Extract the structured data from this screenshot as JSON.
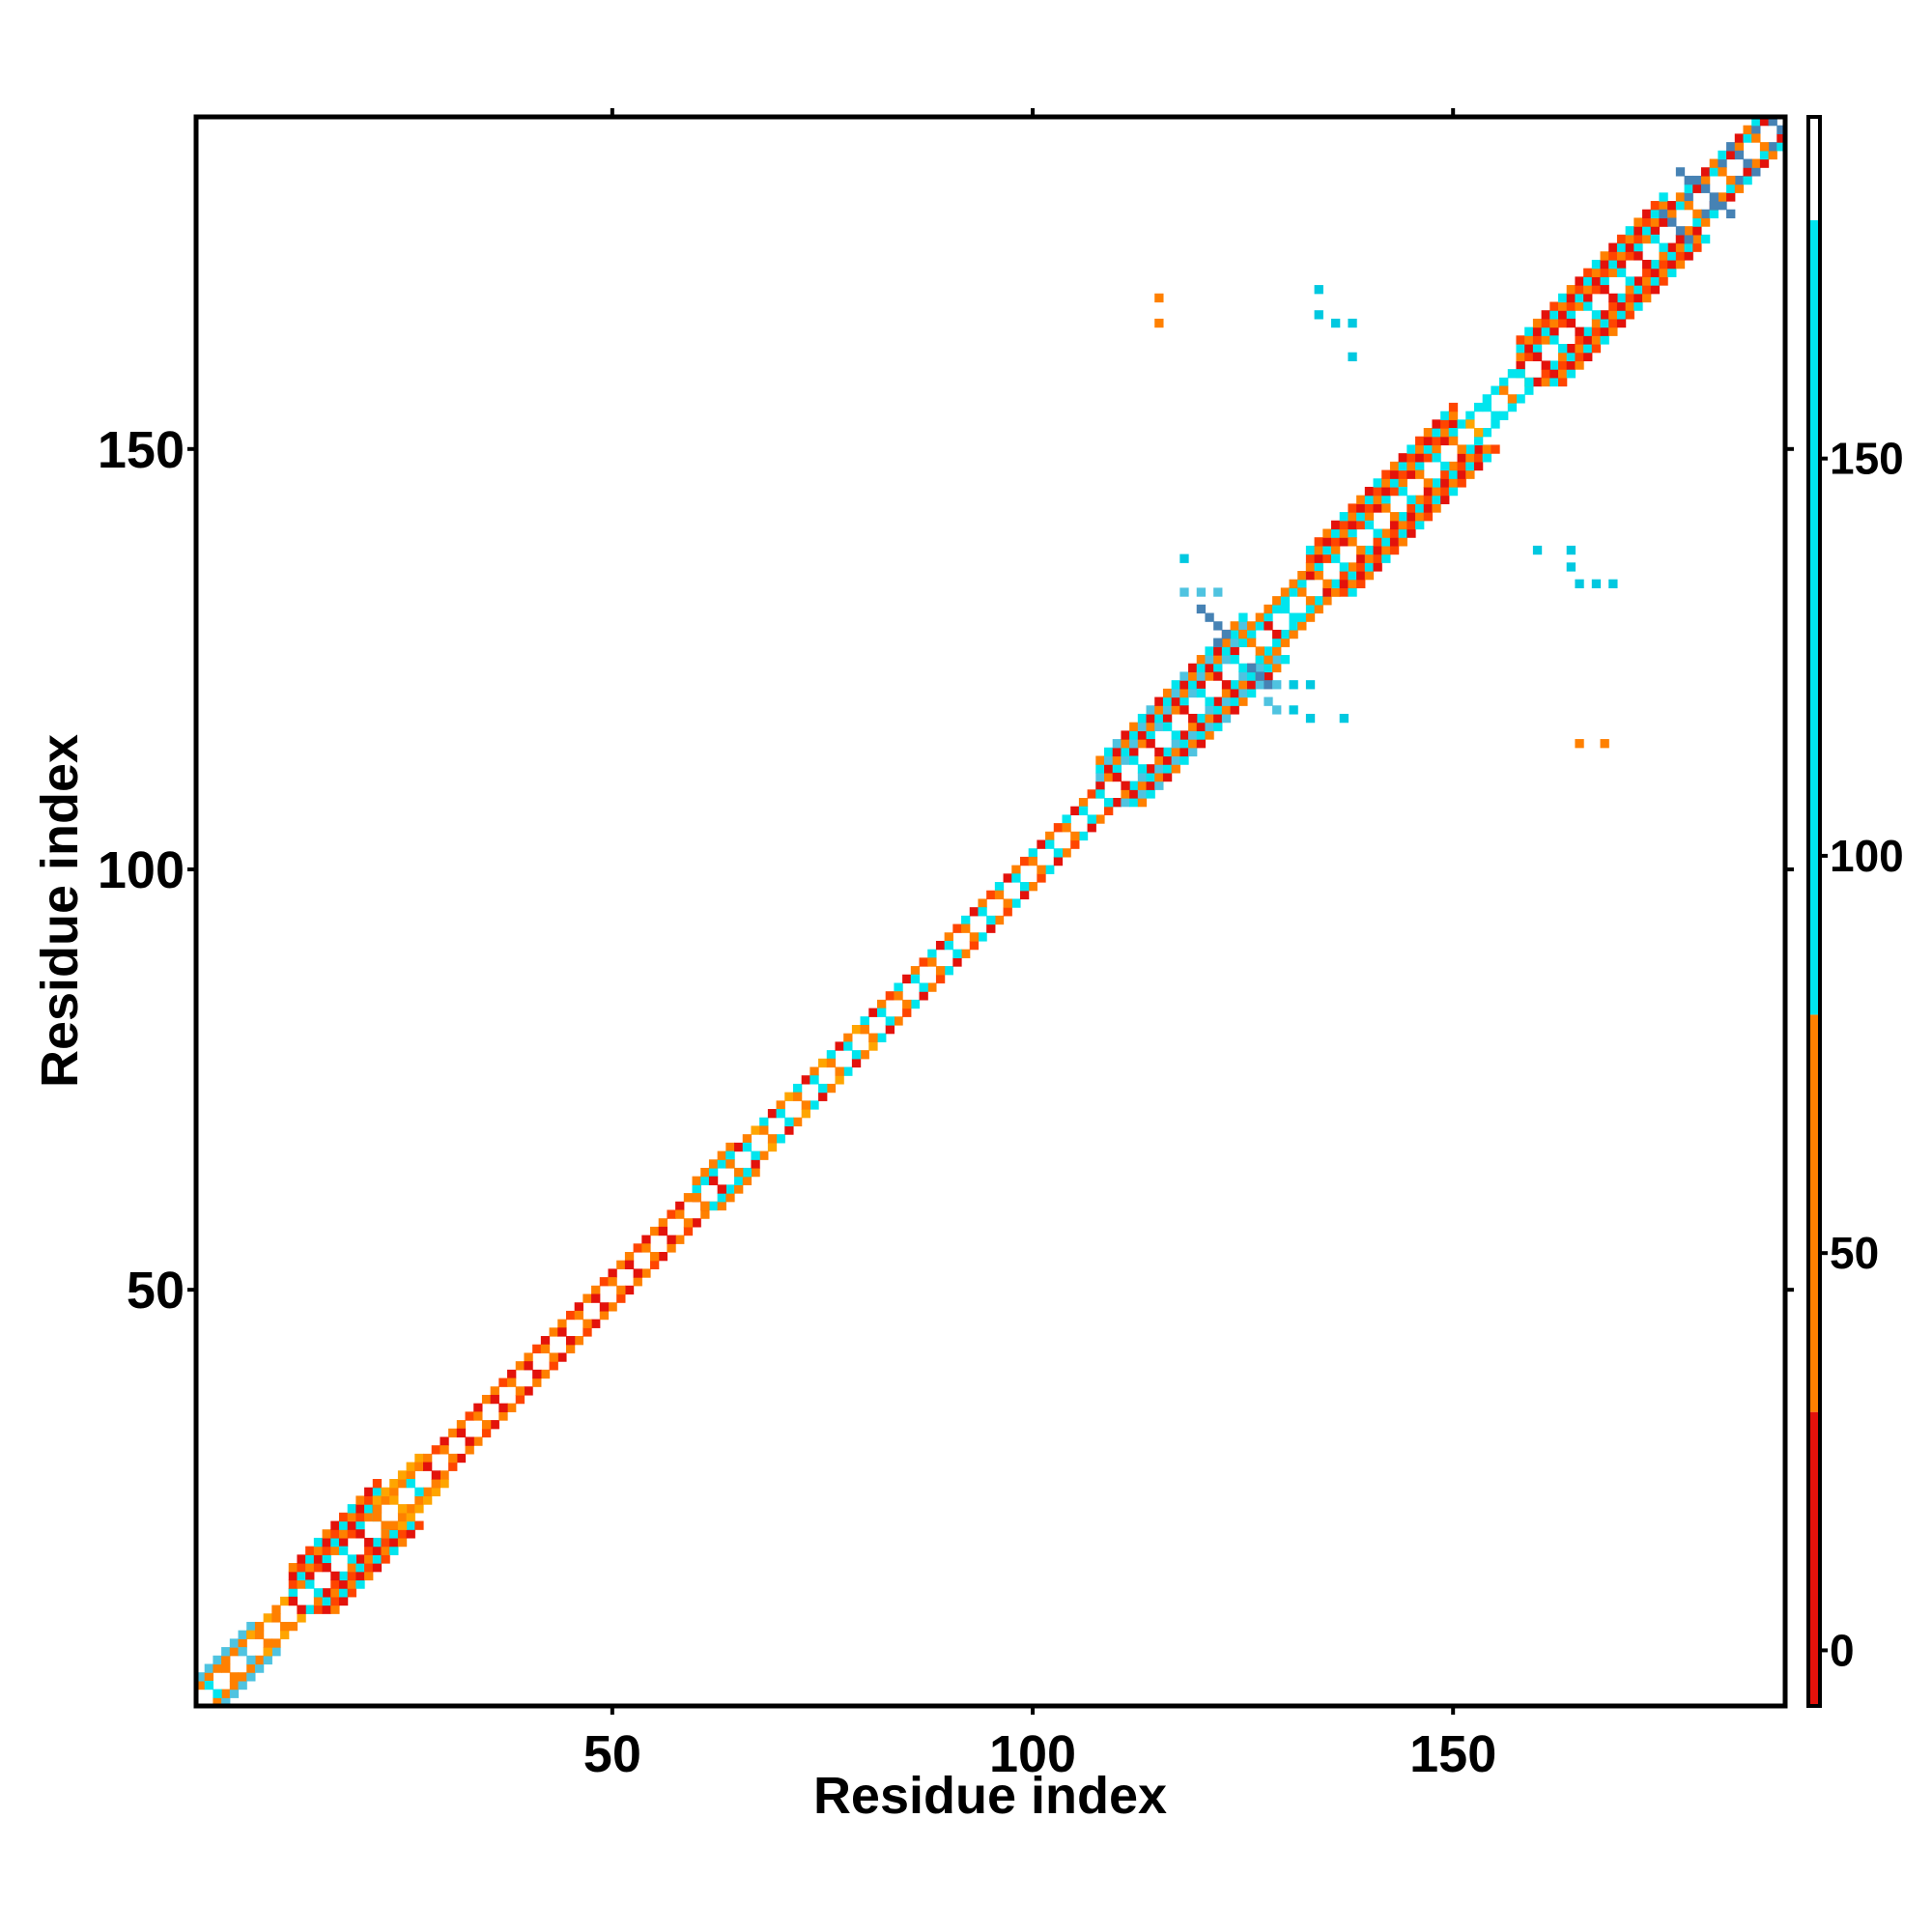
{
  "chart_data": {
    "type": "heatmap",
    "title": "",
    "xlabel": "Residue index",
    "ylabel": "Residue index",
    "xlim": [
      1,
      189
    ],
    "ylim": [
      1,
      189
    ],
    "x_ticks": [
      50,
      100,
      150
    ],
    "y_ticks": [
      50,
      100,
      150
    ],
    "grid": false,
    "matrix": "symmetric contact map, diagonal band from (1,1) to (189,189)",
    "colorbar": {
      "ticks": [
        0,
        50,
        100,
        150
      ],
      "range": [
        -7,
        193
      ],
      "bands": [
        {
          "from": -7,
          "to": 30,
          "color": "#e3120b"
        },
        {
          "from": 30,
          "to": 80,
          "color": "#ff8000"
        },
        {
          "from": 80,
          "to": 180,
          "color": "#00e5ee"
        },
        {
          "from": 180,
          "to": 193,
          "color": "#ffffff"
        }
      ]
    },
    "band_segments": [
      {
        "from": 1,
        "to": 7,
        "width": 3,
        "colors": [
          "#4fc3e0",
          "#ff8000",
          "#00e5ee"
        ]
      },
      {
        "from": 7,
        "to": 12,
        "width": 2,
        "colors": [
          "#ff8000",
          "#ffa500"
        ]
      },
      {
        "from": 12,
        "to": 22,
        "width": 5,
        "colors": [
          "#e3120b",
          "#ff8000",
          "#00e5ee",
          "#ff4500"
        ]
      },
      {
        "from": 22,
        "to": 27,
        "width": 3,
        "colors": [
          "#ffa500",
          "#ff8000",
          "#00e5ee"
        ]
      },
      {
        "from": 27,
        "to": 60,
        "width": 2,
        "colors": [
          "#e3120b",
          "#ff4500",
          "#ff8000",
          "#ff8000"
        ]
      },
      {
        "from": 60,
        "to": 64,
        "width": 3,
        "colors": [
          "#ff8000",
          "#00e5ee",
          "#e3120b"
        ]
      },
      {
        "from": 64,
        "to": 80,
        "width": 2,
        "colors": [
          "#ff8000",
          "#e3120b",
          "#00e5ee",
          "#ffa500"
        ]
      },
      {
        "from": 80,
        "to": 108,
        "width": 2,
        "colors": [
          "#ff8000",
          "#e3120b",
          "#00e5ee",
          "#ff4500"
        ]
      },
      {
        "from": 108,
        "to": 125,
        "width": 5,
        "colors": [
          "#00e5ee",
          "#ff8000",
          "#e3120b",
          "#4fc3e0"
        ]
      },
      {
        "from": 125,
        "to": 133,
        "width": 3,
        "colors": [
          "#ff8000",
          "#00e5ee",
          "#e3120b"
        ]
      },
      {
        "from": 133,
        "to": 150,
        "width": 5,
        "colors": [
          "#00e5ee",
          "#e3120b",
          "#ff8000",
          "#ff4500"
        ]
      },
      {
        "from": 150,
        "to": 158,
        "width": 2,
        "colors": [
          "#ff8000",
          "#00e5ee",
          "#ffa500"
        ]
      },
      {
        "from": 158,
        "to": 175,
        "width": 5,
        "colors": [
          "#e3120b",
          "#ff8000",
          "#00e5ee",
          "#ff4500"
        ]
      },
      {
        "from": 175,
        "to": 189,
        "width": 3,
        "colors": [
          "#4682b4",
          "#00e5ee",
          "#ff8000",
          "#e3120b"
        ]
      }
    ],
    "off_diagonal": [
      {
        "x": 115,
        "y": 168,
        "color": "#ff8000"
      },
      {
        "x": 115,
        "y": 165,
        "color": "#ff8000"
      },
      {
        "x": 134,
        "y": 169,
        "color": "#00c8e0"
      },
      {
        "x": 134,
        "y": 166,
        "color": "#00c8e0"
      },
      {
        "x": 136,
        "y": 165,
        "color": "#00c8e0"
      },
      {
        "x": 138,
        "y": 165,
        "color": "#00c8e0"
      },
      {
        "x": 138,
        "y": 161,
        "color": "#00c8e0"
      },
      {
        "x": 118,
        "y": 137,
        "color": "#00c8e0"
      },
      {
        "x": 118,
        "y": 133,
        "color": "#4fc3e0"
      },
      {
        "x": 120,
        "y": 133,
        "color": "#4fc3e0"
      },
      {
        "x": 122,
        "y": 133,
        "color": "#4fc3e0"
      },
      {
        "x": 120,
        "y": 131,
        "color": "#4682b4"
      },
      {
        "x": 121,
        "y": 130,
        "color": "#4682b4"
      },
      {
        "x": 122,
        "y": 129,
        "color": "#4682b4"
      },
      {
        "x": 123,
        "y": 128,
        "color": "#4682b4"
      },
      {
        "x": 122,
        "y": 127,
        "color": "#4682b4"
      },
      {
        "x": 126,
        "y": 124,
        "color": "#4682b4"
      },
      {
        "x": 127,
        "y": 123,
        "color": "#4682b4"
      },
      {
        "x": 128,
        "y": 122,
        "color": "#4682b4"
      },
      {
        "x": 129,
        "y": 122,
        "color": "#4fc3e0"
      },
      {
        "x": 131,
        "y": 122,
        "color": "#00c8e0"
      },
      {
        "x": 133,
        "y": 122,
        "color": "#00c8e0"
      },
      {
        "x": 128,
        "y": 120,
        "color": "#4fc3e0"
      },
      {
        "x": 129,
        "y": 119,
        "color": "#4fc3e0"
      },
      {
        "x": 131,
        "y": 119,
        "color": "#00c8e0"
      },
      {
        "x": 133,
        "y": 118,
        "color": "#00c8e0"
      },
      {
        "x": 137,
        "y": 118,
        "color": "#00c8e0"
      },
      {
        "x": 160,
        "y": 138,
        "color": "#00c8e0"
      },
      {
        "x": 164,
        "y": 138,
        "color": "#00c8e0"
      },
      {
        "x": 164,
        "y": 136,
        "color": "#00c8e0"
      },
      {
        "x": 165,
        "y": 134,
        "color": "#00c8e0"
      },
      {
        "x": 167,
        "y": 134,
        "color": "#00c8e0"
      },
      {
        "x": 169,
        "y": 134,
        "color": "#00c8e0"
      },
      {
        "x": 165,
        "y": 115,
        "color": "#ff8000"
      },
      {
        "x": 168,
        "y": 115,
        "color": "#ff8000"
      },
      {
        "x": 177,
        "y": 183,
        "color": "#4682b4"
      },
      {
        "x": 178,
        "y": 182,
        "color": "#4682b4"
      },
      {
        "x": 181,
        "y": 179,
        "color": "#4682b4"
      },
      {
        "x": 183,
        "y": 178,
        "color": "#4682b4"
      }
    ]
  }
}
